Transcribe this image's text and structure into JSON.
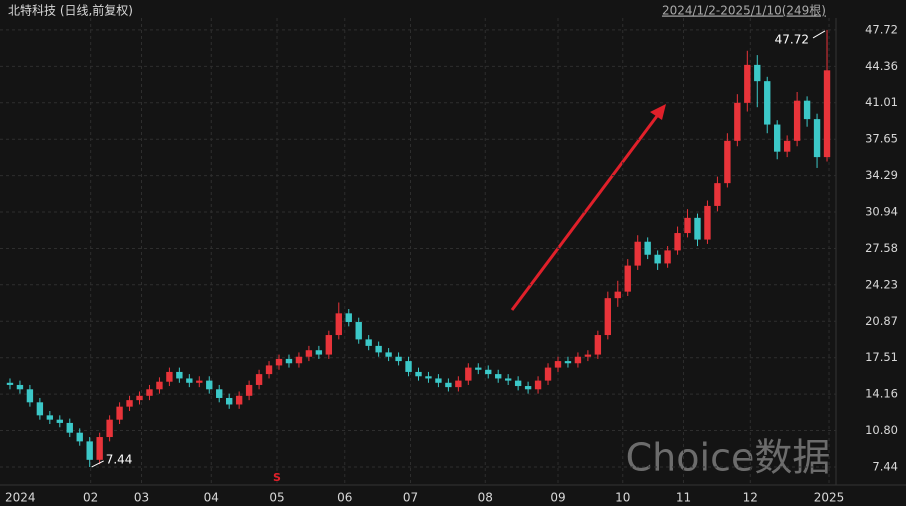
{
  "chart_data": {
    "type": "candlestick",
    "title": "北特科技 (日线,前复权)",
    "range_label": "2024/1/2-2025/1/10(249根)",
    "watermark": "Choice数据",
    "signal": "S",
    "up_color": "#e8343a",
    "down_color": "#3cc8c8",
    "open": [
      15.2,
      15,
      14.6,
      13.4,
      12.2,
      11.8,
      11.5,
      10.6,
      9.8,
      8.1,
      10.2,
      11.8,
      13,
      13.6,
      14,
      14.6,
      15.3,
      16.2,
      15.6,
      15.2,
      15.4,
      14.6,
      13.8,
      13.2,
      14,
      15,
      16,
      16.8,
      17.4,
      17,
      17.6,
      18.2,
      17.8,
      19.6,
      21.6,
      20.8,
      19.2,
      18.6,
      18,
      17.6,
      17.2,
      16.2,
      15.8,
      15.6,
      15.2,
      14.8,
      15.4,
      16.6,
      16.4,
      16,
      15.6,
      15.4,
      14.9,
      14.6,
      15.4,
      16.6,
      17.2,
      17,
      17.6,
      17.8,
      19.6,
      23,
      23.6,
      26,
      28.2,
      27,
      26.2,
      27.4,
      29,
      30.4,
      28.4,
      31.5,
      33.6,
      37.5,
      41,
      44.5,
      43,
      39,
      36.5,
      37.5,
      41.2,
      39.5,
      36
    ],
    "close": [
      15,
      14.6,
      13.4,
      12.2,
      11.8,
      11.5,
      10.6,
      9.8,
      8.1,
      10.2,
      11.8,
      13,
      13.6,
      14,
      14.6,
      15.3,
      16.2,
      15.6,
      15.2,
      15.4,
      14.6,
      13.8,
      13.2,
      14,
      15,
      16,
      16.8,
      17.4,
      17,
      17.6,
      18.2,
      17.8,
      19.6,
      21.6,
      20.8,
      19.2,
      18.6,
      18,
      17.6,
      17.2,
      16.2,
      15.8,
      15.6,
      15.2,
      14.8,
      15.4,
      16.6,
      16.4,
      16,
      15.6,
      15.4,
      14.9,
      14.6,
      15.4,
      16.6,
      17.2,
      17,
      17.6,
      17.8,
      19.6,
      23,
      23.6,
      26,
      28.2,
      27,
      26.2,
      27.4,
      29,
      30.4,
      28.4,
      31.5,
      33.6,
      37.5,
      41,
      44.5,
      43,
      39,
      36.5,
      37.5,
      41.2,
      39.5,
      36,
      44
    ],
    "high": [
      15.6,
      15.4,
      15,
      13.8,
      12.6,
      12.2,
      11.9,
      11,
      10.2,
      10.6,
      12.2,
      13.4,
      14,
      14.4,
      15,
      15.7,
      16.6,
      16.6,
      16,
      15.8,
      15.8,
      15,
      14.2,
      14.4,
      15.4,
      16.4,
      17.2,
      17.8,
      17.8,
      18,
      18.6,
      18.6,
      20,
      22.6,
      22,
      21.2,
      19.6,
      19,
      18.4,
      18,
      17.6,
      16.6,
      16.2,
      16,
      15.6,
      15.8,
      17,
      17,
      16.8,
      16.4,
      16,
      15.8,
      15.3,
      15.8,
      17,
      17.6,
      17.6,
      18,
      18.2,
      20,
      23.6,
      24.6,
      26.6,
      28.8,
      28.6,
      27.4,
      27.8,
      29.6,
      31.2,
      30.8,
      32,
      34.2,
      38.2,
      41.8,
      45.8,
      45.4,
      43.4,
      39.4,
      38,
      42,
      41.6,
      40,
      47.72
    ],
    "low": [
      14.6,
      14.2,
      13,
      11.8,
      11.4,
      11.1,
      10.2,
      9.4,
      7.44,
      7.7,
      9.8,
      11.4,
      12.6,
      13.2,
      13.6,
      14.2,
      14.9,
      15.2,
      14.8,
      14.8,
      14.2,
      13.4,
      12.8,
      12.8,
      13.6,
      14.6,
      15.6,
      16.4,
      16.6,
      16.6,
      17.2,
      17.4,
      17.4,
      19.2,
      20.4,
      18.8,
      18.2,
      17.6,
      17.2,
      16.8,
      15.8,
      15.4,
      15.2,
      14.8,
      14.4,
      14.4,
      15,
      16,
      15.6,
      15.2,
      15,
      14.5,
      14.2,
      14.2,
      15,
      16.2,
      16.6,
      16.6,
      17.2,
      17.4,
      19.2,
      22.2,
      23.2,
      25.6,
      26.6,
      25.6,
      25.8,
      27,
      28.6,
      27.8,
      28,
      31,
      33.2,
      37,
      40.2,
      40.6,
      38.2,
      35.8,
      36,
      37,
      38.8,
      35,
      35.6
    ],
    "xticks": [
      {
        "value": 0,
        "label": "2024"
      },
      {
        "value": 8.1,
        "label": "02"
      },
      {
        "value": 13.2,
        "label": "03"
      },
      {
        "value": 20.2,
        "label": "04"
      },
      {
        "value": 26.8,
        "label": "05"
      },
      {
        "value": 33.6,
        "label": "06"
      },
      {
        "value": 40.2,
        "label": "07"
      },
      {
        "value": 47.7,
        "label": "08"
      },
      {
        "value": 55,
        "label": "09"
      },
      {
        "value": 61.5,
        "label": "10"
      },
      {
        "value": 67.6,
        "label": "11"
      },
      {
        "value": 74.3,
        "label": "12"
      },
      {
        "value": 82.2,
        "label": "2025"
      }
    ],
    "ylim": [
      6.24,
      48.82
    ],
    "yticks": [
      47.72,
      44.36,
      41.01,
      37.65,
      34.29,
      30.94,
      27.58,
      24.23,
      20.87,
      17.51,
      14.16,
      {
        "value": 10.8,
        "label": "10.80"
      },
      7.44
    ],
    "grid": true
  }
}
